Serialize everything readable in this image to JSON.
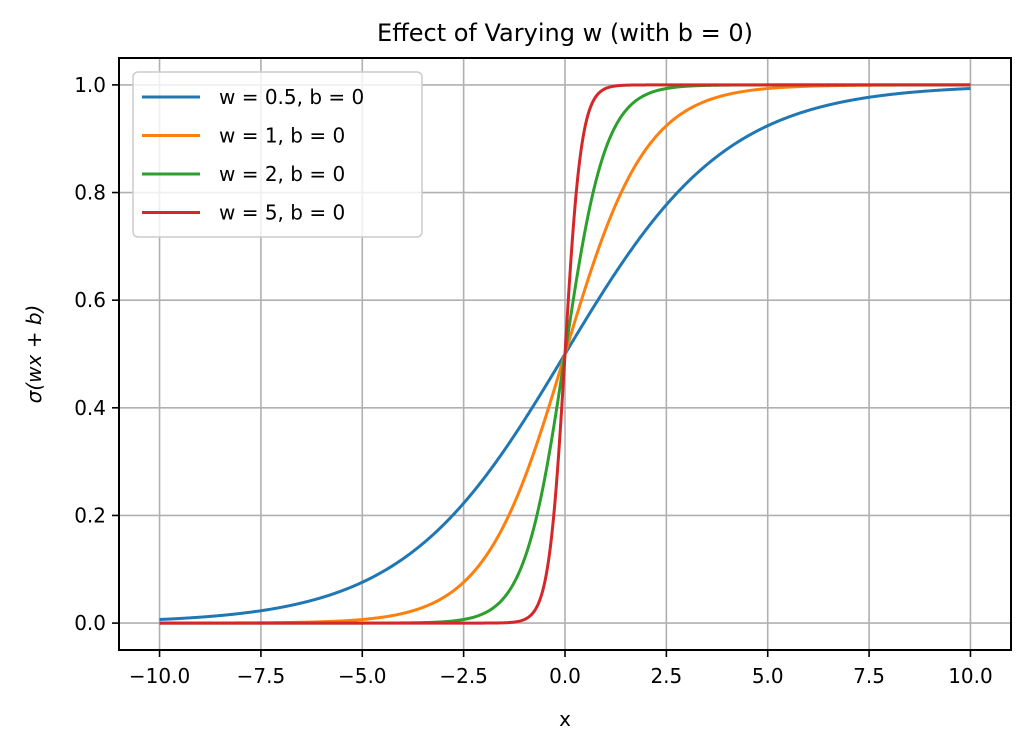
{
  "chart_data": {
    "type": "line",
    "title": "Effect of Varying w (with b = 0)",
    "xlabel": "x",
    "ylabel": "σ(wx + b)",
    "xlim": [
      -11,
      11
    ],
    "ylim": [
      -0.05,
      1.05
    ],
    "xticks": [
      -10,
      -7.5,
      -5,
      -2.5,
      0,
      2.5,
      5,
      7.5,
      10
    ],
    "xtick_labels": [
      "−10.0",
      "−7.5",
      "−5.0",
      "−2.5",
      "0.0",
      "2.5",
      "5.0",
      "7.5",
      "10.0"
    ],
    "yticks": [
      0,
      0.2,
      0.4,
      0.6,
      0.8,
      1.0
    ],
    "ytick_labels": [
      "0.0",
      "0.2",
      "0.4",
      "0.6",
      "0.8",
      "1.0"
    ],
    "grid": true,
    "legend_position": "top-left",
    "x_range": [
      -10,
      10
    ],
    "function": "sigmoid(w*x + b)",
    "series": [
      {
        "name": "w = 0.5, b = 0",
        "w": 0.5,
        "b": 0,
        "color": "#1f77b4"
      },
      {
        "name": "w = 1, b = 0",
        "w": 1,
        "b": 0,
        "color": "#ff7f0e"
      },
      {
        "name": "w = 2, b = 0",
        "w": 2,
        "b": 0,
        "color": "#2ca02c"
      },
      {
        "name": "w = 5, b = 0",
        "w": 5,
        "b": 0,
        "color": "#d62728"
      }
    ]
  }
}
